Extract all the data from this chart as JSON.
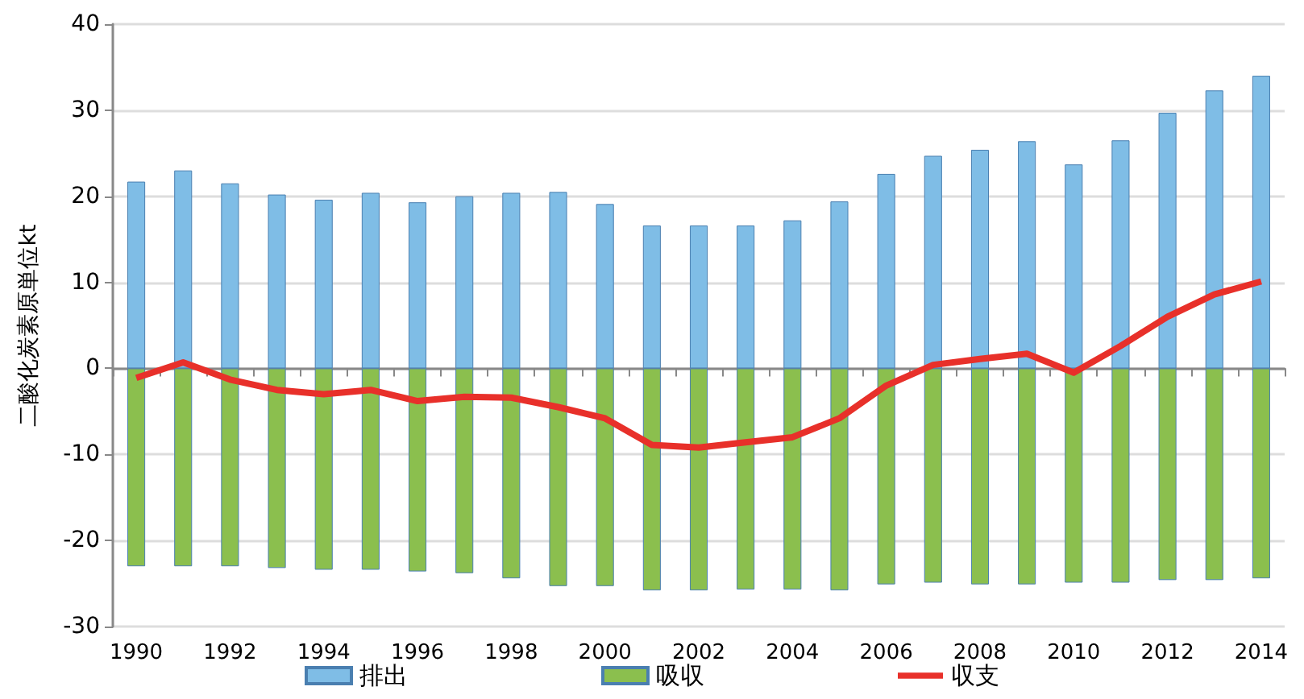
{
  "chart_data": {
    "type": "bar",
    "ylabel": "二酸化炭素原単位kt",
    "categories": [
      "1990",
      null,
      "1992",
      null,
      "1994",
      null,
      "1996",
      null,
      "1998",
      null,
      "2000",
      null,
      "2002",
      null,
      "2004",
      null,
      "2006",
      null,
      "2008",
      null,
      "2010",
      null,
      "2012",
      null,
      "2014"
    ],
    "series": [
      {
        "name": "排出",
        "color": "#7fbde6",
        "values": [
          21.7,
          23,
          21.5,
          20.2,
          19.6,
          20.4,
          19.3,
          20,
          20.4,
          20.5,
          19.1,
          16.6,
          16.6,
          16.6,
          17.2,
          19.4,
          22.6,
          24.7,
          25.4,
          26.4,
          23.7,
          26.5,
          29.7,
          32.3,
          34
        ]
      },
      {
        "name": "吸収",
        "color": "#8bbf4e",
        "values": [
          -23,
          -23,
          -23,
          -23.2,
          -23.4,
          -23.4,
          -23.6,
          -23.8,
          -24.4,
          -25.3,
          -25.3,
          -25.8,
          -25.8,
          -25.7,
          -25.7,
          -25.8,
          -25.1,
          -24.9,
          -25.1,
          -25.1,
          -24.9,
          -24.9,
          -24.6,
          -24.6,
          -24.4
        ]
      },
      {
        "name": "収支",
        "type": "line",
        "color": "#e8302a",
        "values": [
          -1.1,
          0.7,
          -1.3,
          -2.5,
          -3,
          -2.5,
          -3.8,
          -3.3,
          -3.4,
          -4.5,
          -5.8,
          -8.9,
          -9.2,
          -8.6,
          -8,
          -5.8,
          -2,
          0.4,
          1.1,
          1.7,
          -0.5,
          2.6,
          6,
          8.6,
          10.1
        ]
      }
    ],
    "ylim": [
      -30,
      40
    ],
    "yticks": [
      -30,
      -20,
      -10,
      0,
      10,
      20,
      30,
      40
    ],
    "stacked": true,
    "grid": "y",
    "legend": "bottom",
    "marker": "none"
  }
}
